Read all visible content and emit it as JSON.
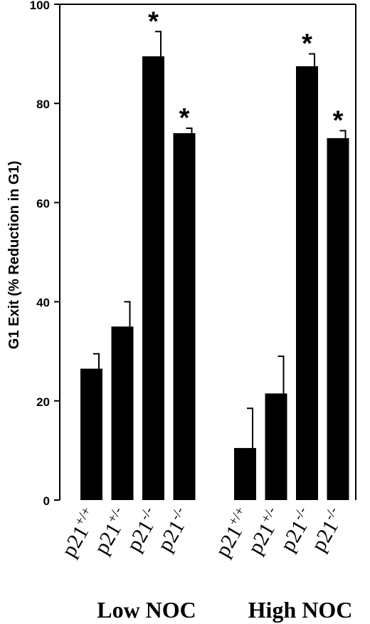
{
  "chart_data": {
    "type": "bar",
    "ylabel": "G1 Exit (% Reduction in G1)",
    "ylim": [
      0,
      100
    ],
    "yticks": [
      0,
      20,
      40,
      60,
      80,
      100
    ],
    "groups": [
      {
        "label": "Low NOC",
        "bars": [
          {
            "base": "p21",
            "sup": "+/+",
            "value": 26.5,
            "error": 3.0,
            "significant": false
          },
          {
            "base": "p21",
            "sup": "+/-",
            "value": 35.0,
            "error": 5.0,
            "significant": false
          },
          {
            "base": "p21",
            "sup": "-/-",
            "value": 89.5,
            "error": 5.0,
            "significant": true
          },
          {
            "base": "p21",
            "sup": "-/-",
            "value": 74.0,
            "error": 1.0,
            "significant": true
          }
        ]
      },
      {
        "label": "High NOC",
        "bars": [
          {
            "base": "p21",
            "sup": "+/+",
            "value": 10.5,
            "error": 8.0,
            "significant": false
          },
          {
            "base": "p21",
            "sup": "+/-",
            "value": 21.5,
            "error": 7.5,
            "significant": false
          },
          {
            "base": "p21",
            "sup": "-/-",
            "value": 87.5,
            "error": 2.5,
            "significant": true
          },
          {
            "base": "p21",
            "sup": "-/-",
            "value": 73.0,
            "error": 1.5,
            "significant": true
          }
        ]
      }
    ],
    "significance_marker": "*",
    "grid": false,
    "legend": "none",
    "bar_color": "#000000"
  }
}
